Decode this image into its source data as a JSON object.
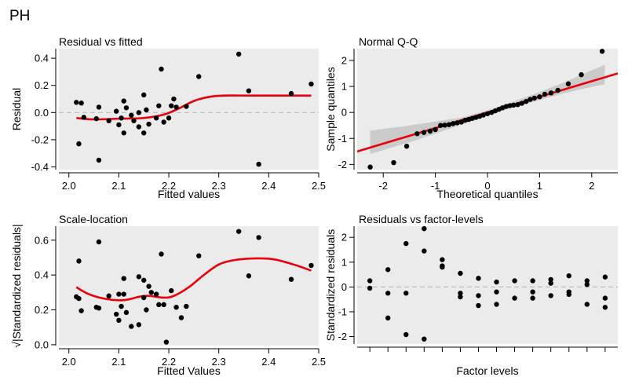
{
  "figure_title": "PH",
  "chart_data": [
    {
      "id": "rvf",
      "type": "scatter",
      "title": "Residual vs fitted",
      "xlabel": "Fitted values",
      "ylabel": "Residual",
      "xlim": [
        1.98,
        2.5
      ],
      "ylim": [
        -0.42,
        0.47
      ],
      "xticks": [
        2.0,
        2.1,
        2.2,
        2.3,
        2.4,
        2.5
      ],
      "xtick_labels": [
        "2.0",
        "2.1",
        "2.2",
        "2.3",
        "2.4",
        "2.5"
      ],
      "yticks": [
        -0.4,
        -0.2,
        0.0,
        0.2,
        0.4
      ],
      "ytick_labels": [
        "-0.4",
        "-0.2",
        "0.0",
        "0.2",
        "0.4"
      ],
      "hline": 0,
      "points": [
        [
          2.015,
          0.075
        ],
        [
          2.02,
          -0.23
        ],
        [
          2.025,
          0.07
        ],
        [
          2.03,
          -0.035
        ],
        [
          2.055,
          -0.045
        ],
        [
          2.06,
          -0.35
        ],
        [
          2.06,
          0.04
        ],
        [
          2.08,
          -0.06
        ],
        [
          2.095,
          0.01
        ],
        [
          2.1,
          -0.09
        ],
        [
          2.105,
          -0.04
        ],
        [
          2.11,
          0.085
        ],
        [
          2.11,
          -0.15
        ],
        [
          2.115,
          0.035
        ],
        [
          2.125,
          -0.02
        ],
        [
          2.13,
          -0.06
        ],
        [
          2.14,
          -0.105
        ],
        [
          2.14,
          0.0
        ],
        [
          2.15,
          0.13
        ],
        [
          2.15,
          -0.15
        ],
        [
          2.155,
          0.02
        ],
        [
          2.16,
          -0.085
        ],
        [
          2.175,
          -0.04
        ],
        [
          2.18,
          0.05
        ],
        [
          2.185,
          0.32
        ],
        [
          2.19,
          -0.07
        ],
        [
          2.2,
          -0.04
        ],
        [
          2.205,
          0.05
        ],
        [
          2.21,
          0.1
        ],
        [
          2.215,
          0.04
        ],
        [
          2.235,
          0.045
        ],
        [
          2.26,
          0.265
        ],
        [
          2.34,
          0.43
        ],
        [
          2.36,
          0.16
        ],
        [
          2.38,
          -0.38
        ],
        [
          2.445,
          0.14
        ],
        [
          2.485,
          0.21
        ]
      ],
      "smooth": [
        [
          2.015,
          -0.04
        ],
        [
          2.05,
          -0.05
        ],
        [
          2.1,
          -0.045
        ],
        [
          2.15,
          -0.04
        ],
        [
          2.19,
          -0.015
        ],
        [
          2.22,
          0.03
        ],
        [
          2.25,
          0.085
        ],
        [
          2.28,
          0.115
        ],
        [
          2.31,
          0.125
        ],
        [
          2.36,
          0.125
        ],
        [
          2.42,
          0.125
        ],
        [
          2.485,
          0.125
        ]
      ]
    },
    {
      "id": "qq",
      "type": "scatter",
      "title": "Normal Q-Q",
      "xlabel": "Theoretical quantiles",
      "ylabel": "Sample quantiles",
      "xlim": [
        -2.5,
        2.5
      ],
      "ylim": [
        -2.2,
        2.45
      ],
      "xticks": [
        -2,
        -1,
        0,
        1,
        2
      ],
      "xtick_labels": [
        "-2",
        "-1",
        "0",
        "1",
        "2"
      ],
      "yticks": [
        -2,
        -1,
        0,
        1,
        2
      ],
      "ytick_labels": [
        "-2",
        "-1",
        "0",
        "1",
        "2"
      ],
      "points": [
        [
          -2.25,
          -2.1
        ],
        [
          -1.8,
          -1.93
        ],
        [
          -1.55,
          -1.3
        ],
        [
          -1.35,
          -0.82
        ],
        [
          -1.22,
          -0.77
        ],
        [
          -1.1,
          -0.72
        ],
        [
          -1.0,
          -0.66
        ],
        [
          -0.9,
          -0.5
        ],
        [
          -0.82,
          -0.49
        ],
        [
          -0.74,
          -0.47
        ],
        [
          -0.66,
          -0.43
        ],
        [
          -0.58,
          -0.4
        ],
        [
          -0.5,
          -0.37
        ],
        [
          -0.43,
          -0.3
        ],
        [
          -0.36,
          -0.27
        ],
        [
          -0.29,
          -0.23
        ],
        [
          -0.22,
          -0.19
        ],
        [
          -0.15,
          -0.15
        ],
        [
          -0.08,
          -0.1
        ],
        [
          0.0,
          -0.05
        ],
        [
          0.08,
          0.0
        ],
        [
          0.15,
          0.06
        ],
        [
          0.22,
          0.12
        ],
        [
          0.29,
          0.18
        ],
        [
          0.36,
          0.23
        ],
        [
          0.43,
          0.26
        ],
        [
          0.5,
          0.28
        ],
        [
          0.58,
          0.3
        ],
        [
          0.66,
          0.35
        ],
        [
          0.74,
          0.42
        ],
        [
          0.82,
          0.5
        ],
        [
          0.9,
          0.55
        ],
        [
          1.0,
          0.6
        ],
        [
          1.1,
          0.7
        ],
        [
          1.22,
          0.75
        ],
        [
          1.35,
          0.85
        ],
        [
          1.55,
          1.1
        ],
        [
          1.8,
          1.45
        ],
        [
          2.2,
          2.35
        ]
      ],
      "fit_line": [
        [
          -2.5,
          -1.5
        ],
        [
          2.5,
          1.5
        ]
      ],
      "band_upper": [
        [
          -2.25,
          -0.7
        ],
        [
          -1.5,
          -0.5
        ],
        [
          -1.0,
          -0.35
        ],
        [
          -0.5,
          -0.2
        ],
        [
          0.0,
          0.08
        ],
        [
          0.5,
          0.42
        ],
        [
          1.0,
          0.78
        ],
        [
          1.5,
          1.18
        ],
        [
          2.0,
          1.62
        ],
        [
          2.25,
          1.83
        ]
      ],
      "band_lower": [
        [
          -2.25,
          -1.6
        ],
        [
          -1.5,
          -1.15
        ],
        [
          -1.0,
          -0.82
        ],
        [
          -0.5,
          -0.47
        ],
        [
          0.0,
          -0.12
        ],
        [
          0.5,
          0.2
        ],
        [
          1.0,
          0.48
        ],
        [
          1.5,
          0.75
        ],
        [
          2.0,
          0.98
        ],
        [
          2.25,
          1.08
        ]
      ]
    },
    {
      "id": "sl",
      "type": "scatter",
      "title": "Scale-location",
      "xlabel": "Fitted Values",
      "ylabel": "√|Standardized residuals|",
      "xlim": [
        1.98,
        2.5
      ],
      "ylim": [
        -0.005,
        0.68
      ],
      "xticks": [
        2.0,
        2.1,
        2.2,
        2.3,
        2.4,
        2.5
      ],
      "xtick_labels": [
        "2.0",
        "2.1",
        "2.2",
        "2.3",
        "2.4",
        "2.5"
      ],
      "yticks": [
        0.0,
        0.2,
        0.4,
        0.6
      ],
      "ytick_labels": [
        "0.0",
        "0.2",
        "0.4",
        "0.6"
      ],
      "points": [
        [
          2.015,
          0.275
        ],
        [
          2.02,
          0.48
        ],
        [
          2.02,
          0.265
        ],
        [
          2.025,
          0.195
        ],
        [
          2.055,
          0.215
        ],
        [
          2.06,
          0.59
        ],
        [
          2.06,
          0.21
        ],
        [
          2.08,
          0.28
        ],
        [
          2.095,
          0.175
        ],
        [
          2.1,
          0.14
        ],
        [
          2.1,
          0.29
        ],
        [
          2.105,
          0.22
        ],
        [
          2.11,
          0.38
        ],
        [
          2.11,
          0.29
        ],
        [
          2.115,
          0.185
        ],
        [
          2.125,
          0.105
        ],
        [
          2.14,
          0.39
        ],
        [
          2.14,
          0.115
        ],
        [
          2.15,
          0.37
        ],
        [
          2.15,
          0.27
        ],
        [
          2.155,
          0.2
        ],
        [
          2.16,
          0.335
        ],
        [
          2.165,
          0.3
        ],
        [
          2.175,
          0.29
        ],
        [
          2.18,
          0.23
        ],
        [
          2.185,
          0.52
        ],
        [
          2.19,
          0.23
        ],
        [
          2.195,
          0.015
        ],
        [
          2.205,
          0.31
        ],
        [
          2.215,
          0.215
        ],
        [
          2.225,
          0.155
        ],
        [
          2.235,
          0.22
        ],
        [
          2.26,
          0.51
        ],
        [
          2.34,
          0.65
        ],
        [
          2.36,
          0.395
        ],
        [
          2.38,
          0.615
        ],
        [
          2.445,
          0.375
        ],
        [
          2.485,
          0.455
        ]
      ],
      "smooth": [
        [
          2.015,
          0.33
        ],
        [
          2.04,
          0.29
        ],
        [
          2.07,
          0.265
        ],
        [
          2.1,
          0.255
        ],
        [
          2.12,
          0.26
        ],
        [
          2.14,
          0.275
        ],
        [
          2.16,
          0.28
        ],
        [
          2.19,
          0.27
        ],
        [
          2.21,
          0.28
        ],
        [
          2.24,
          0.33
        ],
        [
          2.27,
          0.4
        ],
        [
          2.3,
          0.46
        ],
        [
          2.33,
          0.485
        ],
        [
          2.37,
          0.495
        ],
        [
          2.41,
          0.49
        ],
        [
          2.45,
          0.46
        ],
        [
          2.485,
          0.425
        ]
      ]
    },
    {
      "id": "rvl",
      "type": "scatter",
      "title": "Residuals vs factor-levels",
      "xlabel": "Factor levels",
      "ylabel": "Standardized residuals",
      "xlim": [
        0.3,
        14.7
      ],
      "ylim": [
        -2.3,
        2.45
      ],
      "xticks": [
        1,
        2,
        3,
        4,
        5,
        6,
        7,
        8,
        9,
        10,
        11,
        12,
        13,
        14
      ],
      "xtick_labels": [],
      "yticks": [
        -2,
        -1,
        0,
        1,
        2
      ],
      "ytick_labels": [
        "-2",
        "-1",
        "0",
        "1",
        "2"
      ],
      "hline": 0,
      "points": [
        [
          1,
          0.25
        ],
        [
          1,
          -0.05
        ],
        [
          2,
          0.7
        ],
        [
          2,
          -0.25
        ],
        [
          2,
          -1.25
        ],
        [
          3,
          1.75
        ],
        [
          3,
          -0.25
        ],
        [
          3,
          -1.92
        ],
        [
          4,
          2.35
        ],
        [
          4,
          1.45
        ],
        [
          4,
          -2.1
        ],
        [
          5,
          1.1
        ],
        [
          5,
          0.85
        ],
        [
          5,
          0.8
        ],
        [
          6,
          0.55
        ],
        [
          6,
          -0.25
        ],
        [
          6,
          -0.4
        ],
        [
          7,
          0.35
        ],
        [
          7,
          -0.35
        ],
        [
          7,
          -0.75
        ],
        [
          8,
          0.2
        ],
        [
          8,
          -0.2
        ],
        [
          8,
          -0.7
        ],
        [
          9,
          0.25
        ],
        [
          9,
          -0.45
        ],
        [
          10,
          0.25
        ],
        [
          10,
          -0.2
        ],
        [
          10,
          -0.45
        ],
        [
          11,
          0.3
        ],
        [
          11,
          0.15
        ],
        [
          11,
          -0.35
        ],
        [
          12,
          0.45
        ],
        [
          12,
          -0.2
        ],
        [
          12,
          -0.3
        ],
        [
          13,
          0.25
        ],
        [
          13,
          0.1
        ],
        [
          13,
          -0.7
        ],
        [
          14,
          0.4
        ],
        [
          14,
          -0.45
        ],
        [
          14,
          -0.82
        ]
      ]
    }
  ]
}
